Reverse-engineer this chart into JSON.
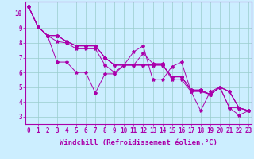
{
  "title": "",
  "xlabel": "Windchill (Refroidissement éolien,°C)",
  "ylabel": "",
  "background_color": "#cceeff",
  "line_color": "#aa00aa",
  "grid_color": "#99cccc",
  "x_values": [
    0,
    1,
    2,
    3,
    4,
    5,
    6,
    7,
    8,
    9,
    10,
    11,
    12,
    13,
    14,
    15,
    16,
    17,
    18,
    19,
    20,
    21,
    22,
    23
  ],
  "ylim": [
    2.5,
    10.8
  ],
  "xlim": [
    -0.3,
    23.3
  ],
  "series": [
    [
      10.5,
      9.1,
      8.5,
      6.7,
      6.7,
      6.0,
      6.0,
      4.6,
      5.9,
      5.9,
      6.5,
      7.4,
      7.8,
      5.5,
      5.5,
      6.4,
      6.7,
      4.7,
      3.4,
      4.7,
      5.0,
      3.6,
      3.1,
      3.4
    ],
    [
      10.5,
      9.1,
      8.5,
      8.1,
      8.0,
      7.6,
      7.6,
      7.6,
      6.5,
      6.0,
      6.5,
      6.5,
      7.3,
      6.6,
      6.6,
      5.5,
      5.5,
      4.7,
      4.7,
      4.5,
      5.0,
      3.6,
      3.6,
      3.4
    ],
    [
      10.5,
      9.1,
      8.5,
      8.5,
      8.1,
      7.8,
      7.8,
      7.8,
      7.0,
      6.5,
      6.5,
      6.5,
      6.5,
      6.5,
      6.5,
      5.7,
      5.7,
      4.8,
      4.8,
      4.5,
      5.0,
      4.7,
      3.6,
      3.4
    ],
    [
      10.5,
      9.1,
      8.5,
      8.5,
      8.1,
      7.8,
      7.8,
      7.8,
      7.0,
      6.5,
      6.5,
      6.5,
      6.5,
      6.5,
      6.5,
      5.7,
      5.7,
      4.8,
      4.8,
      4.5,
      5.0,
      4.7,
      3.6,
      3.4
    ],
    [
      10.5,
      9.1,
      8.5,
      8.5,
      8.1,
      7.8,
      7.8,
      7.8,
      7.0,
      6.5,
      6.5,
      6.5,
      6.5,
      6.5,
      6.5,
      5.7,
      5.7,
      4.8,
      4.8,
      4.5,
      5.0,
      4.7,
      3.6,
      3.4
    ]
  ],
  "marker": "*",
  "marker_size": 3,
  "line_width": 0.7,
  "tick_label_fontsize": 5.5,
  "xlabel_fontsize": 6.5,
  "yticks": [
    3,
    4,
    5,
    6,
    7,
    8,
    9,
    10
  ],
  "xticks": [
    0,
    1,
    2,
    3,
    4,
    5,
    6,
    7,
    8,
    9,
    10,
    11,
    12,
    13,
    14,
    15,
    16,
    17,
    18,
    19,
    20,
    21,
    22,
    23
  ]
}
